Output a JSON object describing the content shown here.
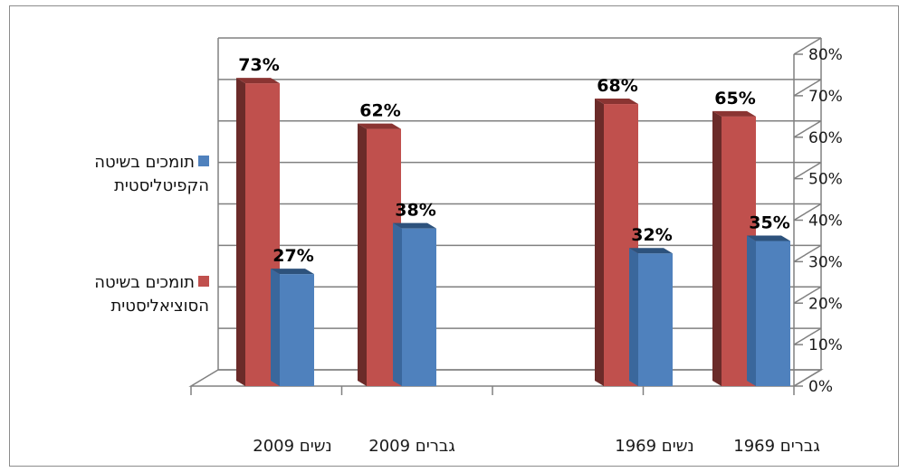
{
  "chart_data": {
    "type": "bar",
    "style": "3d-clustered-column",
    "categories": [
      "נשים 2009",
      "גברים 2009",
      "נשים 1969",
      "גברים 1969"
    ],
    "series": [
      {
        "name": "תומכים בשיטה הקפיטליסטית",
        "values": [
          27,
          38,
          32,
          35
        ],
        "labels": [
          "27%",
          "38%",
          "32%",
          "35%"
        ],
        "color": "#4f81bd",
        "side": "#3a679c",
        "top": "#2d527c"
      },
      {
        "name": "תומכים בשיטה הסוציאליסטית",
        "values": [
          73,
          62,
          68,
          65
        ],
        "labels": [
          "73%",
          "62%",
          "68%",
          "65%"
        ],
        "color": "#c0504d",
        "side": "#6b2b29",
        "top": "#8a3432"
      }
    ],
    "y_ticks": [
      "0%",
      "10%",
      "20%",
      "30%",
      "40%",
      "50%",
      "60%",
      "70%",
      "80%"
    ],
    "ylim": [
      0,
      80
    ],
    "y_axis_side": "right",
    "legend_position": "left",
    "grid": true
  }
}
